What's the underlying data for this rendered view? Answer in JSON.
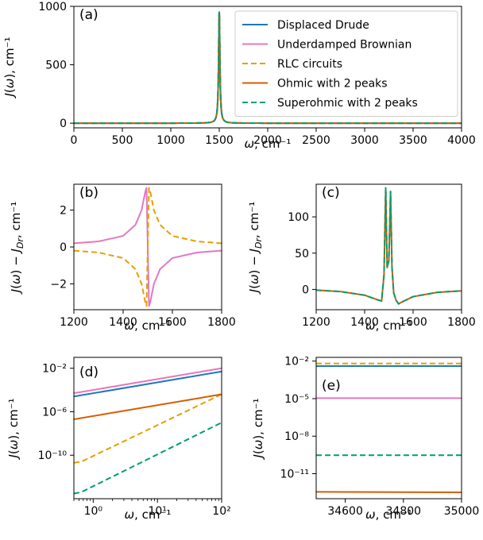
{
  "series_styles": [
    {
      "name": "Displaced Drude",
      "color": "#1f77b4",
      "dash": ""
    },
    {
      "name": "Underdamped Brownian",
      "color": "#e377c2",
      "dash": ""
    },
    {
      "name": "RLC circuits",
      "color": "#e69f00",
      "dash": "7,4"
    },
    {
      "name": "Ohmic with 2 peaks",
      "color": "#d55e00",
      "dash": ""
    },
    {
      "name": "Superohmic with 2 peaks",
      "color": "#009e73",
      "dash": "7,4"
    }
  ],
  "chart_data": [
    {
      "panel": "(a)",
      "type": "line",
      "xlabel": "ω, cm⁻¹",
      "ylabel": "J(ω), cm⁻¹",
      "xlim": [
        0,
        4000
      ],
      "ylim": [
        -40,
        1000
      ],
      "xticks": [
        0,
        500,
        1000,
        1500,
        2000,
        2500,
        3000,
        3500,
        4000
      ],
      "yticks": [
        0,
        500,
        1000
      ],
      "legend": "top-right",
      "peak": {
        "center": 1500,
        "height": 950,
        "width": 8
      },
      "series": [
        {
          "name": "Displaced Drude",
          "x": [
            0,
            1400,
            1480,
            1492,
            1500,
            1508,
            1520,
            1600,
            4000
          ],
          "y": [
            0,
            5,
            60,
            400,
            950,
            400,
            60,
            5,
            0
          ]
        },
        {
          "name": "Underdamped Brownian",
          "x": [
            0,
            1400,
            1480,
            1492,
            1500,
            1508,
            1520,
            1600,
            4000
          ],
          "y": [
            0,
            5,
            60,
            400,
            950,
            400,
            60,
            5,
            0
          ]
        },
        {
          "name": "RLC circuits",
          "x": [
            0,
            1400,
            1480,
            1492,
            1500,
            1508,
            1520,
            1600,
            4000
          ],
          "y": [
            0,
            5,
            60,
            400,
            950,
            400,
            60,
            5,
            0
          ]
        },
        {
          "name": "Ohmic with 2 peaks",
          "x": [
            0,
            1400,
            1480,
            1492,
            1500,
            1508,
            1520,
            1600,
            4000
          ],
          "y": [
            0,
            5,
            60,
            400,
            950,
            400,
            60,
            5,
            0
          ]
        },
        {
          "name": "Superohmic with 2 peaks",
          "x": [
            0,
            1400,
            1480,
            1492,
            1500,
            1508,
            1520,
            1600,
            4000
          ],
          "y": [
            0,
            5,
            60,
            400,
            950,
            400,
            60,
            5,
            0
          ]
        }
      ]
    },
    {
      "panel": "(b)",
      "type": "line",
      "xlabel": "ω, cm⁻¹",
      "ylabel": "J(ω) − J_Dr, cm⁻¹",
      "xlim": [
        1200,
        1800
      ],
      "ylim": [
        -3.4,
        3.4
      ],
      "xticks": [
        1200,
        1400,
        1600,
        1800
      ],
      "yticks": [
        -2,
        0,
        2
      ],
      "series": [
        {
          "name": "Underdamped Brownian",
          "x": [
            1200,
            1300,
            1400,
            1450,
            1475,
            1490,
            1495,
            1500,
            1505,
            1510,
            1525,
            1550,
            1600,
            1700,
            1800
          ],
          "y": [
            0.2,
            0.3,
            0.6,
            1.2,
            2.0,
            3.0,
            3.2,
            0.0,
            -3.2,
            -3.0,
            -2.0,
            -1.2,
            -0.6,
            -0.3,
            -0.2
          ]
        },
        {
          "name": "RLC circuits",
          "x": [
            1200,
            1300,
            1400,
            1450,
            1475,
            1490,
            1495,
            1500,
            1505,
            1510,
            1525,
            1550,
            1600,
            1700,
            1800
          ],
          "y": [
            -0.2,
            -0.3,
            -0.6,
            -1.2,
            -2.0,
            -3.0,
            -3.2,
            0.0,
            3.2,
            3.0,
            2.0,
            1.2,
            0.6,
            0.3,
            0.2
          ]
        }
      ]
    },
    {
      "panel": "(c)",
      "type": "line",
      "xlabel": "ω, cm⁻¹",
      "ylabel": "J(ω) − J_Dr, cm⁻¹",
      "xlim": [
        1200,
        1800
      ],
      "ylim": [
        -28,
        145
      ],
      "xticks": [
        1200,
        1400,
        1600,
        1800
      ],
      "yticks": [
        0,
        50,
        100
      ],
      "series": [
        {
          "name": "Ohmic with 2 peaks",
          "x": [
            1200,
            1300,
            1400,
            1450,
            1470,
            1480,
            1487,
            1493,
            1500,
            1507,
            1513,
            1520,
            1530,
            1540,
            1550,
            1600,
            1700,
            1800
          ],
          "y": [
            -1,
            -3,
            -8,
            -14,
            -16,
            20,
            140,
            30,
            40,
            135,
            30,
            -5,
            -15,
            -20,
            -18,
            -10,
            -4,
            -2
          ]
        },
        {
          "name": "Superohmic with 2 peaks",
          "x": [
            1200,
            1300,
            1400,
            1450,
            1470,
            1480,
            1487,
            1493,
            1500,
            1507,
            1513,
            1520,
            1530,
            1540,
            1550,
            1600,
            1700,
            1800
          ],
          "y": [
            -1,
            -3,
            -8,
            -14,
            -16,
            20,
            140,
            30,
            40,
            135,
            30,
            -5,
            -15,
            -20,
            -18,
            -10,
            -4,
            -2
          ]
        }
      ]
    },
    {
      "panel": "(d)",
      "type": "line",
      "xscale": "log",
      "yscale": "log",
      "xlabel": "ω, cm⁻¹",
      "ylabel": "J(ω), cm⁻¹",
      "xlim": [
        0.5,
        100
      ],
      "ylim": [
        1e-14,
        0.1
      ],
      "xticks": [
        1,
        10,
        100
      ],
      "xtick_labels": [
        "10⁰",
        "10¹",
        "10²"
      ],
      "yticks": [
        0.01,
        1e-06,
        1e-10
      ],
      "ytick_labels": [
        "10⁻²",
        "10⁻⁶",
        "10⁻¹⁰"
      ],
      "series": [
        {
          "name": "Displaced Drude",
          "x": [
            0.5,
            100
          ],
          "y": [
            2.5e-05,
            0.005
          ]
        },
        {
          "name": "Underdamped Brownian",
          "x": [
            0.5,
            100
          ],
          "y": [
            5e-05,
            0.01
          ]
        },
        {
          "name": "RLC circuits",
          "x": [
            0.5,
            0.65,
            100
          ],
          "y": [
            2e-11,
            2.5e-11,
            4e-05
          ]
        },
        {
          "name": "Ohmic with 2 peaks",
          "x": [
            0.5,
            100
          ],
          "y": [
            2e-07,
            4e-05
          ]
        },
        {
          "name": "Superohmic with 2 peaks",
          "x": [
            0.5,
            0.65,
            100
          ],
          "y": [
            3e-14,
            4e-14,
            1e-07
          ]
        }
      ]
    },
    {
      "panel": "(e)",
      "type": "line",
      "yscale": "log",
      "xlabel": "ω, cm⁻¹",
      "ylabel": "J(ω), cm⁻¹",
      "xlim": [
        34500,
        35000
      ],
      "ylim": [
        1e-13,
        0.02
      ],
      "xticks": [
        34600,
        34800,
        35000
      ],
      "yticks": [
        0.01,
        1e-05,
        1e-08,
        1e-11
      ],
      "ytick_labels": [
        "10⁻²",
        "10⁻⁵",
        "10⁻⁸",
        "10⁻¹¹"
      ],
      "series": [
        {
          "name": "Displaced Drude",
          "x": [
            34500,
            35000
          ],
          "y": [
            0.004,
            0.004
          ]
        },
        {
          "name": "Underdamped Brownian",
          "x": [
            34500,
            35000
          ],
          "y": [
            1.1e-05,
            1.1e-05
          ]
        },
        {
          "name": "RLC circuits",
          "x": [
            34500,
            35000
          ],
          "y": [
            0.0065,
            0.0065
          ]
        },
        {
          "name": "Ohmic with 2 peaks",
          "x": [
            34500,
            35000
          ],
          "y": [
            3.5e-13,
            3.2e-13
          ]
        },
        {
          "name": "Superohmic with 2 peaks",
          "x": [
            34500,
            35000
          ],
          "y": [
            3e-10,
            3e-10
          ]
        }
      ]
    }
  ]
}
